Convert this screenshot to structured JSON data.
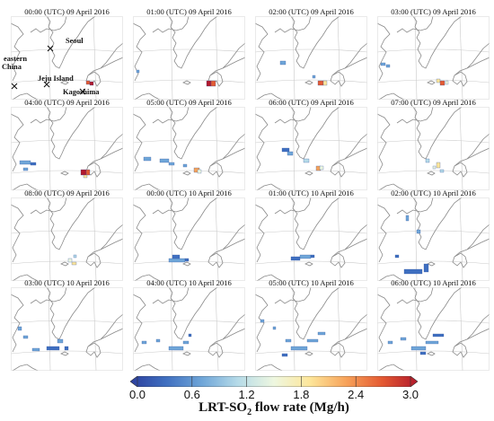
{
  "figure": {
    "panels": [
      {
        "title": "00:00 (UTC) 09 April 2016",
        "plume": []
      },
      {
        "title": "01:00 (UTC) 09 April 2016",
        "plume": []
      },
      {
        "title": "02:00 (UTC) 09 April 2016",
        "plume": []
      },
      {
        "title": "03:00 (UTC) 09 April 2016",
        "plume": []
      },
      {
        "title": "04:00 (UTC) 09 April 2016",
        "plume": []
      },
      {
        "title": "05:00 (UTC) 09 April 2016",
        "plume": []
      },
      {
        "title": "06:00 (UTC) 09 April 2016",
        "plume": []
      },
      {
        "title": "07:00 (UTC) 09 April 2016",
        "plume": []
      },
      {
        "title": "08:00 (UTC) 09 April 2016",
        "plume": []
      },
      {
        "title": "00:00 (UTC) 10 April 2016",
        "plume": []
      },
      {
        "title": "01:00 (UTC) 10 April 2016",
        "plume": []
      },
      {
        "title": "02:00 (UTC) 10 April 2016",
        "plume": []
      },
      {
        "title": "03:00 (UTC) 10 April 2016",
        "plume": []
      },
      {
        "title": "04:00 (UTC) 10 April 2016",
        "plume": []
      },
      {
        "title": "05:00 (UTC) 10 April 2016",
        "plume": []
      },
      {
        "title": "06:00 (UTC) 10 April 2016",
        "plume": []
      }
    ],
    "locations": {
      "seoul": "Seoul",
      "eastern_china_line1": "eastern",
      "eastern_china_line2": "China",
      "jeju": "Jeju Island",
      "kagoshima": "Kagoshima"
    },
    "colorbar": {
      "label_main": "LRT-SO",
      "label_sub": "2",
      "label_tail": " flow rate (Mg/h)",
      "ticks": [
        "0.0",
        "0.6",
        "1.2",
        "1.8",
        "2.4",
        "3.0"
      ],
      "min": 0.0,
      "max": 3.0,
      "colors": [
        "#2c3f9e",
        "#3f6fc0",
        "#6fa6d8",
        "#b6dbe8",
        "#eef7e0",
        "#fde69a",
        "#f7a35a",
        "#e45a32",
        "#b2182b"
      ]
    }
  }
}
